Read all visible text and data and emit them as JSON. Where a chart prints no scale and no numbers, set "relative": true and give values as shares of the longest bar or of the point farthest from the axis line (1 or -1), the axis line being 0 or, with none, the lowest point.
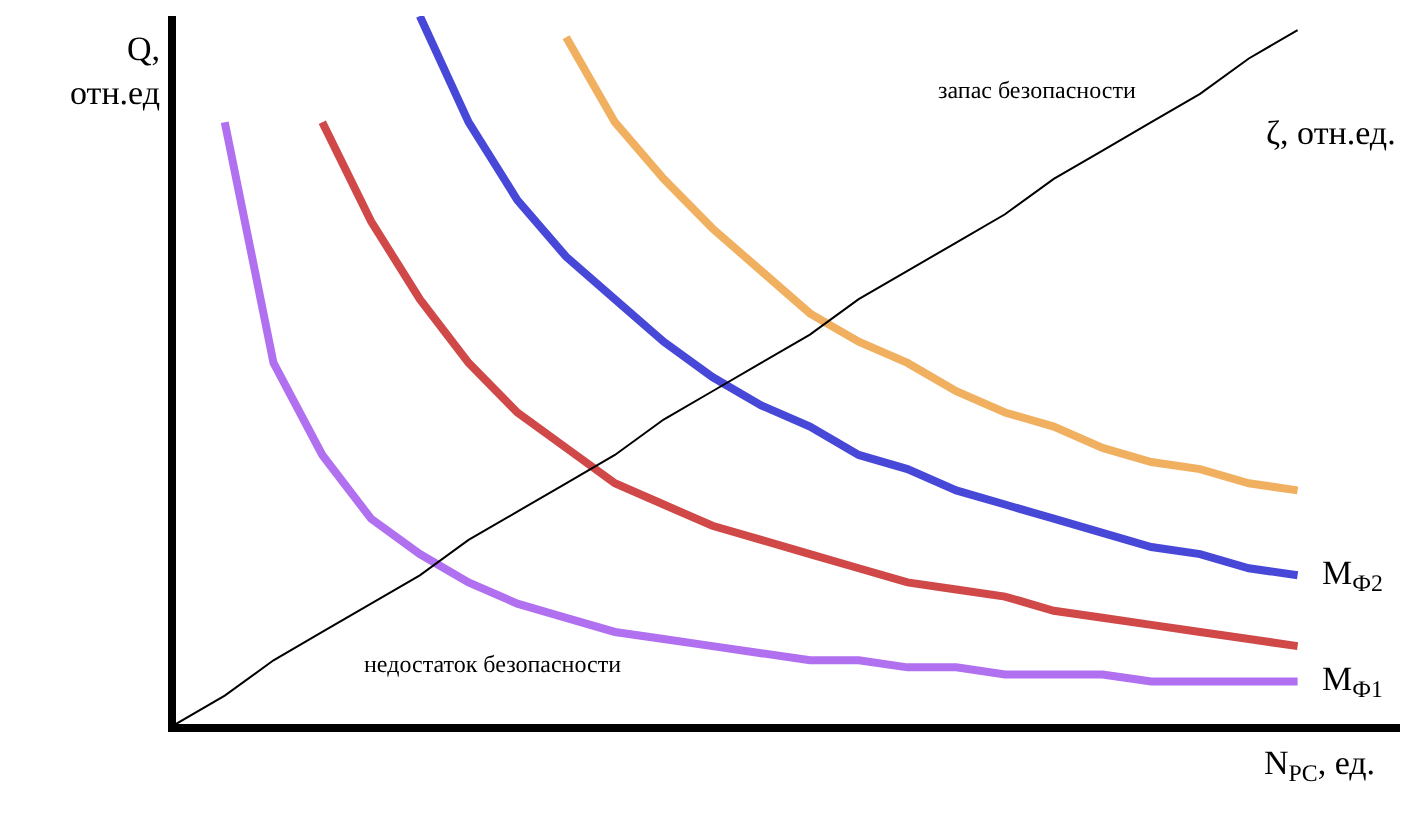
{
  "chart_data": {
    "type": "line",
    "relative": true,
    "xlabel": "N$_{PC}$, ед.",
    "ylabel": "Q, отн.ед",
    "legend": false,
    "marker": "none",
    "line_style": "solid",
    "categories": [
      null,
      null,
      null,
      null,
      null,
      null,
      null,
      null,
      null,
      null,
      null,
      null,
      null,
      null,
      null,
      null,
      null,
      null,
      null,
      null,
      null,
      null,
      null,
      null
    ],
    "series": [
      {
        "name": "M$_{Ф1}$",
        "color": "#b070f0",
        "values": [
          null,
          0.85,
          0.51,
          0.38,
          0.29,
          0.24,
          0.2,
          0.17,
          0.15,
          0.13,
          0.12,
          0.11,
          0.1,
          0.09,
          0.09,
          0.08,
          0.08,
          0.07,
          0.07,
          0.07,
          0.06,
          0.06,
          0.06,
          0.06
        ]
      },
      {
        "color": "#d04848",
        "values": [
          null,
          null,
          null,
          0.85,
          0.71,
          0.6,
          0.51,
          0.44,
          0.39,
          0.34,
          0.31,
          0.28,
          0.26,
          0.24,
          0.22,
          0.2,
          0.19,
          0.18,
          0.16,
          0.15,
          0.14,
          0.13,
          0.12,
          0.11
        ]
      },
      {
        "name": "M$_{Ф2}$",
        "color": "#4848d8",
        "values": [
          null,
          null,
          null,
          null,
          null,
          1.0,
          0.85,
          0.74,
          0.66,
          0.6,
          0.54,
          0.49,
          0.45,
          0.42,
          0.38,
          0.36,
          0.33,
          0.31,
          0.29,
          0.27,
          0.25,
          0.24,
          0.22,
          0.21
        ]
      },
      {
        "color": "#f0b060",
        "values": [
          null,
          null,
          null,
          null,
          null,
          null,
          null,
          null,
          0.97,
          0.85,
          0.77,
          0.7,
          0.64,
          0.58,
          0.54,
          0.51,
          0.47,
          0.44,
          0.42,
          0.39,
          0.37,
          0.36,
          0.34,
          0.33
        ]
      },
      {
        "name": "ζ, отн.ед.",
        "color": "#000000",
        "values": [
          0,
          0.04,
          0.09,
          0.13,
          0.17,
          0.21,
          0.26,
          0.3,
          0.34,
          0.38,
          0.43,
          0.47,
          0.51,
          0.55,
          0.6,
          0.64,
          0.68,
          0.72,
          0.77,
          0.81,
          0.85,
          0.89,
          0.94,
          0.98
        ]
      }
    ],
    "annotations": [
      "запас безопасности",
      "недостаток безопасности"
    ]
  }
}
